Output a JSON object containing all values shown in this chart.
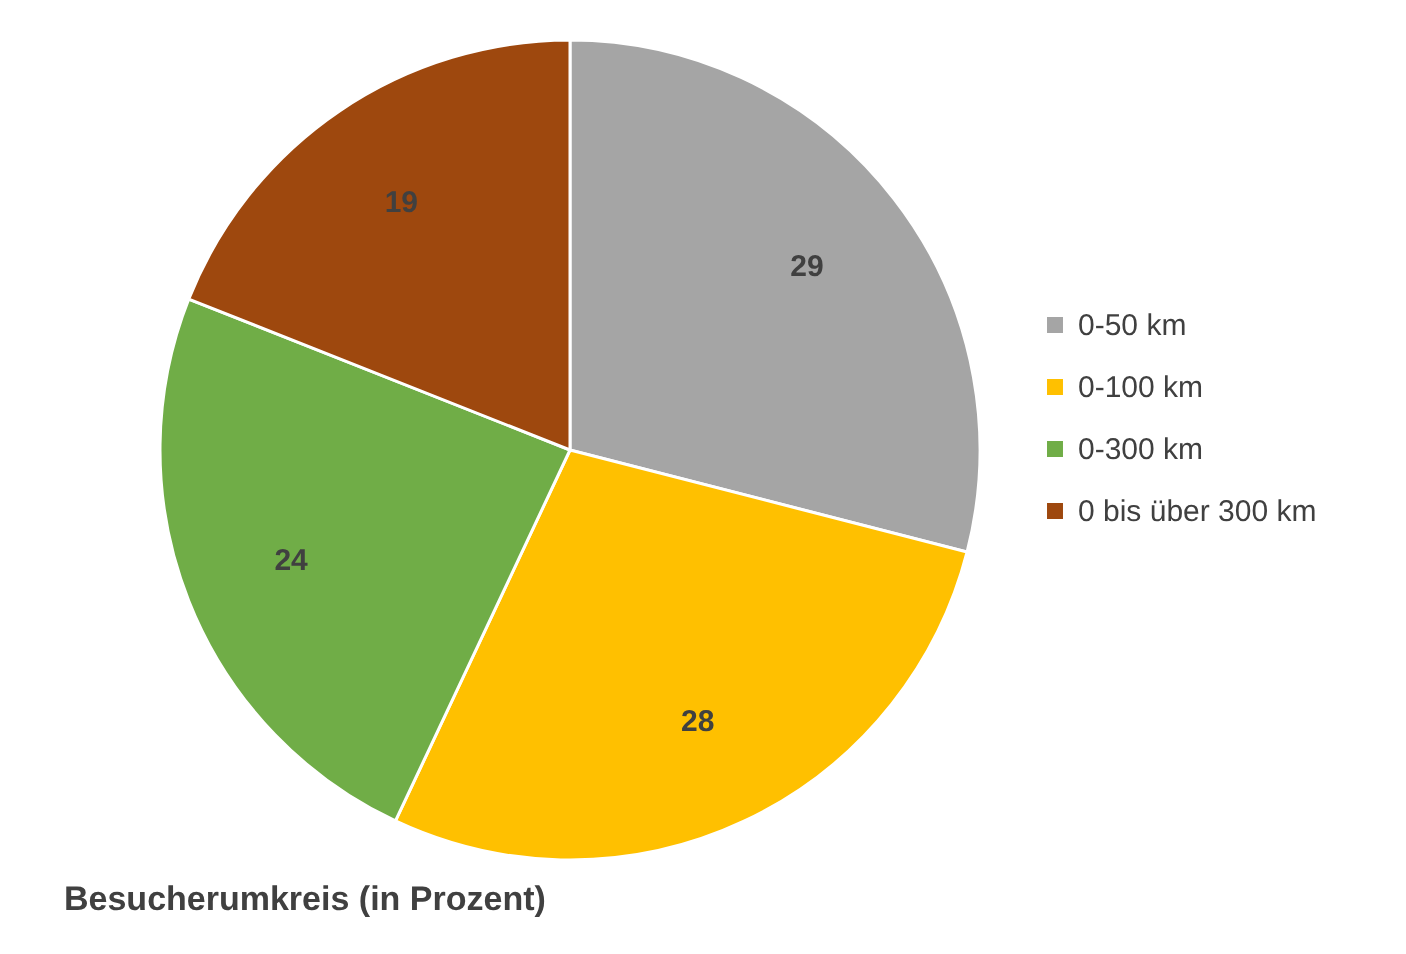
{
  "chart_data": {
    "type": "pie",
    "title": "Besucherumkreis (in Prozent)",
    "categories": [
      "0-50 km",
      "0-100 km",
      "0-300 km",
      "0 bis über 300 km"
    ],
    "values": [
      29,
      28,
      24,
      19
    ],
    "colors": [
      "#a5a5a5",
      "#ffc000",
      "#70ad47",
      "#9e480e"
    ],
    "data_labels": true,
    "legend": "right"
  }
}
